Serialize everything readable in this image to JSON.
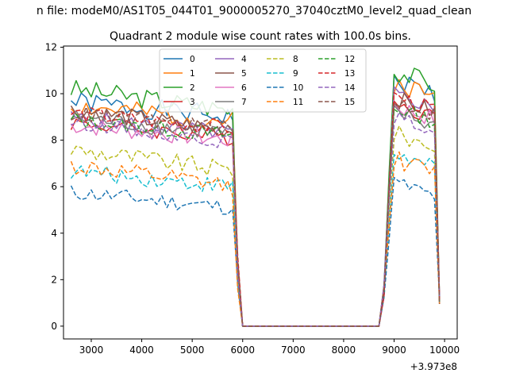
{
  "window_title": "n file: modeM0/AS1T05_044T01_9000005270_37040cztM0_level2_quad_clean",
  "chart_data": {
    "type": "line",
    "title": "Quadrant 2 module wise count rates with 100.0s bins.",
    "xlabel": "",
    "ylabel": "",
    "x_offset_label": "+3.973e8",
    "xlim": [
      2450,
      10250
    ],
    "ylim": [
      -0.55,
      12.05
    ],
    "xticks": [
      3000,
      4000,
      5000,
      6000,
      7000,
      8000,
      9000,
      10000
    ],
    "yticks": [
      0,
      2,
      4,
      6,
      8,
      10,
      12
    ],
    "grid": false,
    "legend_position": "top-center",
    "series": [
      {
        "name": "0",
        "color": "#1f77b4",
        "dash": "solid",
        "on_level": 9.3,
        "noise": 0.45,
        "seed": 1,
        "late_level": 10.6
      },
      {
        "name": "1",
        "color": "#ff7f0e",
        "dash": "solid",
        "on_level": 9.1,
        "noise": 0.45,
        "seed": 2,
        "late_level": 10.5
      },
      {
        "name": "2",
        "color": "#2ca02c",
        "dash": "solid",
        "on_level": 9.6,
        "noise": 0.45,
        "seed": 3,
        "late_level": 11.0
      },
      {
        "name": "3",
        "color": "#d62728",
        "dash": "solid",
        "on_level": 8.4,
        "noise": 0.35,
        "seed": 4,
        "late_level": 9.6
      },
      {
        "name": "4",
        "color": "#9467bd",
        "dash": "solid",
        "on_level": 8.6,
        "noise": 0.35,
        "seed": 5,
        "late_level": 10.0
      },
      {
        "name": "5",
        "color": "#8c564b",
        "dash": "solid",
        "on_level": 8.7,
        "noise": 0.4,
        "seed": 6,
        "late_level": 9.8
      },
      {
        "name": "6",
        "color": "#e377c2",
        "dash": "solid",
        "on_level": 8.3,
        "noise": 0.4,
        "seed": 7,
        "late_level": 9.5
      },
      {
        "name": "7",
        "color": "#7f7f7f",
        "dash": "solid",
        "on_level": 8.6,
        "noise": 0.4,
        "seed": 8,
        "late_level": 9.2
      },
      {
        "name": "8",
        "color": "#bcbd22",
        "dash": "dashed",
        "on_level": 7.0,
        "noise": 0.4,
        "seed": 9,
        "late_level": 8.3
      },
      {
        "name": "9",
        "color": "#17becf",
        "dash": "dashed",
        "on_level": 6.3,
        "noise": 0.35,
        "seed": 10,
        "late_level": 7.4
      },
      {
        "name": "10",
        "color": "#1f77b4",
        "dash": "dashed",
        "on_level": 5.4,
        "noise": 0.35,
        "seed": 11,
        "late_level": 6.2
      },
      {
        "name": "11",
        "color": "#ff7f0e",
        "dash": "dashed",
        "on_level": 6.3,
        "noise": 0.4,
        "seed": 12,
        "late_level": 7.2
      },
      {
        "name": "12",
        "color": "#2ca02c",
        "dash": "dashed",
        "on_level": 8.5,
        "noise": 0.35,
        "seed": 13,
        "late_level": 9.4
      },
      {
        "name": "13",
        "color": "#d62728",
        "dash": "dashed",
        "on_level": 8.8,
        "noise": 0.35,
        "seed": 14,
        "late_level": 9.9
      },
      {
        "name": "14",
        "color": "#9467bd",
        "dash": "dashed",
        "on_level": 8.2,
        "noise": 0.3,
        "seed": 15,
        "late_level": 9.0
      },
      {
        "name": "15",
        "color": "#8c564b",
        "dash": "dashed",
        "on_level": 8.8,
        "noise": 0.35,
        "seed": 16,
        "late_level": 9.7
      }
    ],
    "x_start": 2600,
    "x_step": 100,
    "on_segment_1": [
      2600,
      5800
    ],
    "drop_points": [
      5900,
      6000
    ],
    "off_segment": [
      6000,
      8700
    ],
    "rise_points": [
      8800,
      8900
    ],
    "on_segment_2": [
      9000,
      9800
    ],
    "end_point": 9900
  }
}
